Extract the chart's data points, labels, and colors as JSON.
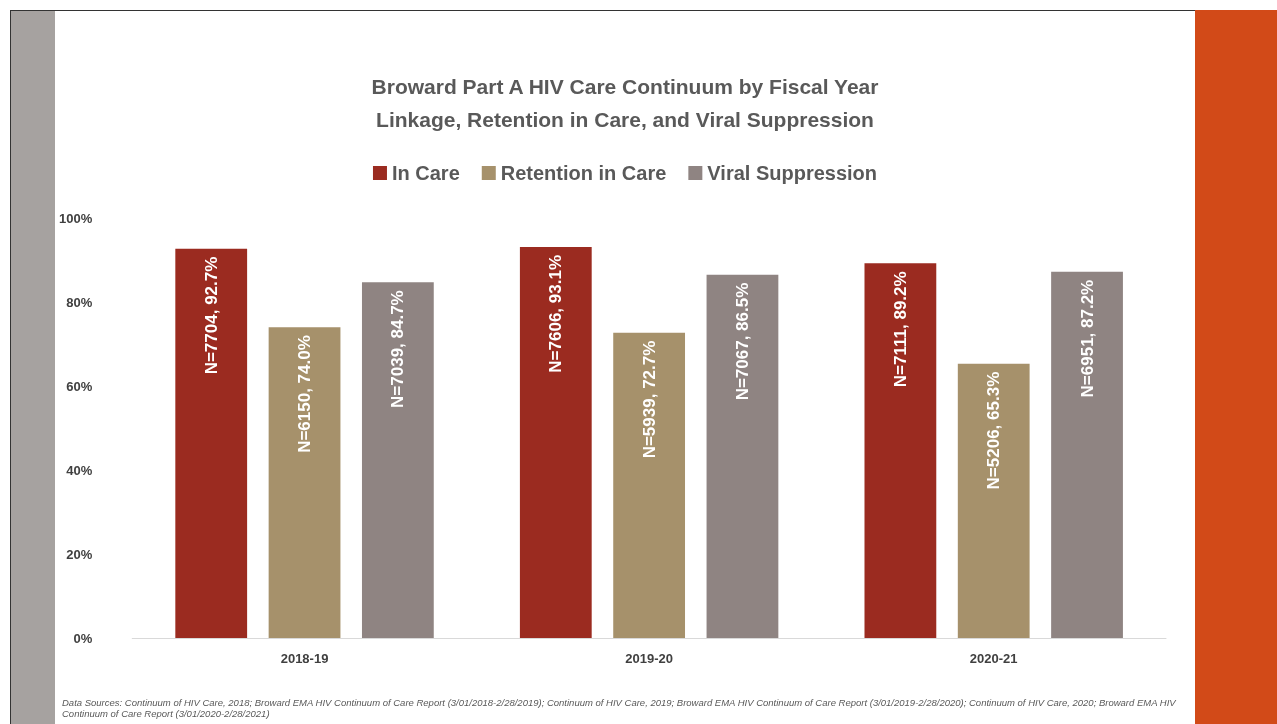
{
  "chart_data": {
    "type": "bar",
    "title": "Broward Part A HIV Care Continuum by Fiscal Year",
    "subtitle": "Linkage, Retention in Care, and Viral Suppression",
    "categories": [
      "2018-19",
      "2019-20",
      "2020-21"
    ],
    "series": [
      {
        "name": "In Care",
        "color": "#9b2b20",
        "values": [
          92.7,
          93.1,
          89.2
        ],
        "value_labels": [
          "N=7704, 92.7%",
          "N=7606, 93.1%",
          "N=7111, 89.2%"
        ]
      },
      {
        "name": "Retention in Care",
        "color": "#a6916b",
        "values": [
          74.0,
          72.7,
          65.3
        ],
        "value_labels": [
          "N=6150, 74.0%",
          "N=5939, 72.7%",
          "N=5206, 65.3%"
        ]
      },
      {
        "name": "Viral Suppression",
        "color": "#8f8482",
        "values": [
          84.7,
          86.5,
          87.2
        ],
        "value_labels": [
          "N=7039, 84.7%",
          "N=7067, 86.5%",
          "N=6951, 87.2%"
        ]
      }
    ],
    "ylim": [
      0,
      100
    ],
    "yticks": [
      {
        "value": 0,
        "label": "0%"
      },
      {
        "value": 20,
        "label": "20%"
      },
      {
        "value": 40,
        "label": "40%"
      },
      {
        "value": 60,
        "label": "60%"
      },
      {
        "value": 80,
        "label": "80%"
      },
      {
        "value": 100,
        "label": "100%"
      }
    ],
    "grid": false,
    "legend": "top",
    "annotations": [
      "Data Sources: Continuum of HIV Care, 2018; Broward EMA HIV Continuum of Care Report (3/01/2018-2/28/2019); Continuum of HIV Care, 2019; Broward EMA HIV Continuum of Care Report (3/01/2019-2/28/2020);  Continuum of HIV Care, 2020; Broward EMA HIV Continuum of Care Report (3/01/2020-2/28/2021)"
    ]
  }
}
